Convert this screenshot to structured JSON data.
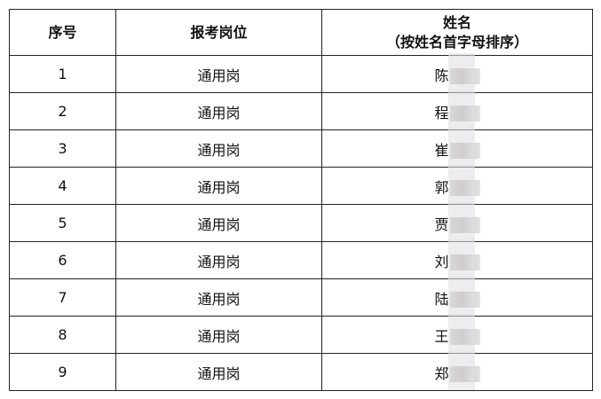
{
  "headers": {
    "index": "序号",
    "position": "报考岗位",
    "name_line1": "姓名",
    "name_line2": "（按姓名首字母排序）"
  },
  "rows": [
    {
      "index": "1",
      "position": "通用岗",
      "surname": "陈"
    },
    {
      "index": "2",
      "position": "通用岗",
      "surname": "程"
    },
    {
      "index": "3",
      "position": "通用岗",
      "surname": "崔"
    },
    {
      "index": "4",
      "position": "通用岗",
      "surname": "郭"
    },
    {
      "index": "5",
      "position": "通用岗",
      "surname": "贾"
    },
    {
      "index": "6",
      "position": "通用岗",
      "surname": "刘"
    },
    {
      "index": "7",
      "position": "通用岗",
      "surname": "陆"
    },
    {
      "index": "8",
      "position": "通用岗",
      "surname": "王"
    },
    {
      "index": "9",
      "position": "通用岗",
      "surname": "郑"
    }
  ]
}
